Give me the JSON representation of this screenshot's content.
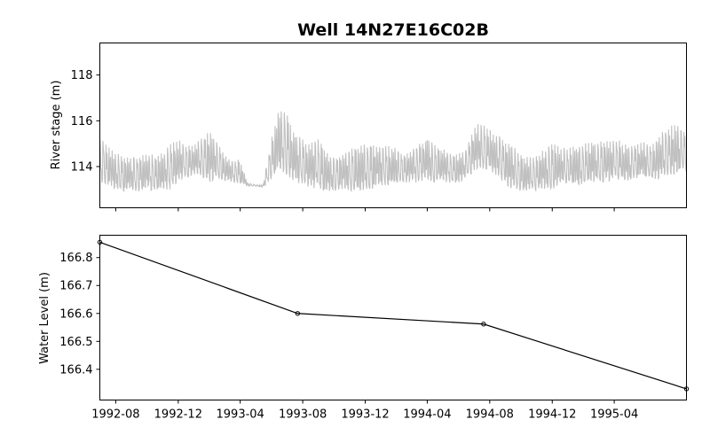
{
  "figure": {
    "title": "Well 14N27E16C02B"
  },
  "chart_data": [
    {
      "type": "line",
      "panel": "top",
      "ylabel": "River stage (m)",
      "xlim": [
        "1992-07-01",
        "1995-08-20"
      ],
      "ylim": [
        112.2,
        119.4
      ],
      "yticks": [
        114,
        116,
        118
      ],
      "grid": false,
      "series": [
        {
          "color": "#c0c0c0",
          "x": [
            "1992-07-01",
            "1992-07-15",
            "1992-08-01",
            "1992-08-15",
            "1992-09-01",
            "1992-09-15",
            "1992-10-01",
            "1992-10-15",
            "1992-11-01",
            "1992-11-15",
            "1992-12-01",
            "1992-12-15",
            "1993-01-01",
            "1993-01-15",
            "1993-02-01",
            "1993-02-15",
            "1993-03-01",
            "1993-03-15",
            "1993-04-01",
            "1993-04-15",
            "1993-05-01",
            "1993-05-15",
            "1993-06-01",
            "1993-06-15",
            "1993-07-01",
            "1993-07-15",
            "1993-08-01",
            "1993-08-15",
            "1993-09-01",
            "1993-09-15",
            "1993-10-01",
            "1993-10-15",
            "1993-11-01",
            "1993-11-15",
            "1993-12-01",
            "1993-12-15",
            "1994-01-01",
            "1994-01-15",
            "1994-02-01",
            "1994-02-15",
            "1994-03-01",
            "1994-03-15",
            "1994-04-01",
            "1994-04-15",
            "1994-05-01",
            "1994-05-15",
            "1994-06-01",
            "1994-06-15",
            "1994-07-01",
            "1994-07-15",
            "1994-08-01",
            "1994-08-15",
            "1994-09-01",
            "1994-09-15",
            "1994-10-01",
            "1994-10-15",
            "1994-11-01",
            "1994-11-15",
            "1994-12-01",
            "1994-12-15",
            "1995-01-01",
            "1995-01-15",
            "1995-02-01",
            "1995-02-15",
            "1995-03-01",
            "1995-03-15",
            "1995-04-01",
            "1995-04-15",
            "1995-05-01",
            "1995-05-15",
            "1995-06-01",
            "1995-06-15",
            "1995-07-01",
            "1995-07-15",
            "1995-08-01",
            "1995-08-15"
          ],
          "low": [
            113.3,
            113.2,
            113.0,
            112.9,
            112.9,
            112.9,
            113.0,
            112.9,
            112.9,
            113.0,
            113.3,
            113.5,
            113.6,
            113.5,
            113.3,
            113.4,
            113.4,
            113.3,
            113.2,
            113.15,
            113.15,
            113.1,
            113.4,
            113.8,
            113.6,
            113.3,
            113.2,
            113.1,
            113.0,
            112.9,
            112.9,
            113.0,
            112.9,
            112.9,
            113.0,
            113.0,
            113.2,
            113.1,
            113.3,
            113.3,
            113.3,
            113.3,
            113.4,
            113.3,
            113.3,
            113.3,
            113.3,
            113.4,
            113.8,
            113.9,
            113.8,
            113.6,
            113.2,
            113.0,
            112.9,
            112.9,
            112.9,
            113.0,
            113.0,
            113.2,
            113.2,
            113.2,
            113.2,
            113.3,
            113.3,
            113.3,
            113.4,
            113.4,
            113.4,
            113.5,
            113.5,
            113.4,
            113.5,
            113.6,
            113.6,
            113.8
          ],
          "high": [
            115.3,
            115.0,
            114.6,
            114.5,
            114.4,
            114.5,
            114.6,
            114.5,
            114.6,
            115.0,
            115.2,
            115.0,
            115.0,
            115.3,
            115.6,
            115.2,
            114.5,
            114.3,
            114.3,
            113.3,
            113.2,
            113.2,
            115.2,
            116.6,
            116.3,
            115.6,
            115.2,
            115.0,
            115.3,
            114.7,
            114.4,
            114.6,
            114.8,
            114.9,
            115.0,
            115.0,
            115.0,
            114.9,
            114.8,
            114.6,
            114.8,
            115.0,
            115.3,
            115.0,
            114.8,
            114.6,
            114.6,
            114.8,
            115.8,
            115.9,
            115.6,
            115.5,
            115.2,
            114.9,
            114.6,
            114.4,
            114.5,
            114.8,
            115.0,
            114.9,
            114.8,
            114.9,
            115.0,
            115.1,
            115.1,
            115.2,
            115.3,
            115.1,
            114.9,
            115.0,
            115.1,
            115.0,
            115.5,
            115.8,
            115.9,
            115.6
          ]
        }
      ]
    },
    {
      "type": "line",
      "panel": "bottom",
      "ylabel": "Water Level (m)",
      "xlim": [
        "1992-07-01",
        "1995-08-20"
      ],
      "ylim": [
        166.29,
        166.88
      ],
      "yticks": [
        166.4,
        166.5,
        166.6,
        166.7,
        166.8
      ],
      "xticks": [
        "1992-08",
        "1992-12",
        "1993-04",
        "1993-08",
        "1993-12",
        "1994-04",
        "1994-08",
        "1994-12",
        "1995-04"
      ],
      "grid": false,
      "series": [
        {
          "color": "#000000",
          "marker": "circle",
          "x": [
            "1992-07-01",
            "1993-07-22",
            "1994-07-20",
            "1995-08-20"
          ],
          "y": [
            166.855,
            166.6,
            166.562,
            166.33
          ]
        }
      ]
    }
  ]
}
